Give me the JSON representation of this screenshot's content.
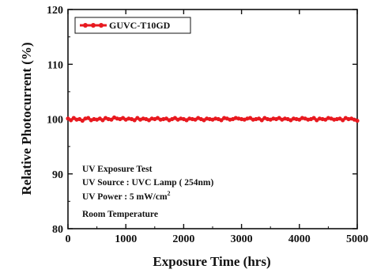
{
  "chart_data": {
    "type": "line",
    "title": "",
    "xlabel": "Exposure Time (hrs)",
    "ylabel": "Relative Photocurrent (%)",
    "xlim": [
      0,
      5000
    ],
    "ylim": [
      80,
      120
    ],
    "x_ticks": [
      0,
      1000,
      2000,
      3000,
      4000,
      5000
    ],
    "y_ticks": [
      80,
      90,
      100,
      110,
      120
    ],
    "x_tick_labels": [
      "0",
      "1000",
      "2000",
      "3000",
      "4000",
      "5000"
    ],
    "y_tick_labels": [
      "80",
      "90",
      "100",
      "110",
      "120"
    ],
    "grid": false,
    "legend_position": "top-left",
    "series": [
      {
        "name": "GUVC-T10GD",
        "color": "#e8191f",
        "marker": "circle",
        "x": [
          0,
          50,
          100,
          150,
          200,
          250,
          300,
          350,
          400,
          450,
          500,
          550,
          600,
          650,
          700,
          750,
          800,
          850,
          900,
          950,
          1000,
          1050,
          1100,
          1150,
          1200,
          1250,
          1300,
          1350,
          1400,
          1450,
          1500,
          1550,
          1600,
          1650,
          1700,
          1750,
          1800,
          1850,
          1900,
          1950,
          2000,
          2050,
          2100,
          2150,
          2200,
          2250,
          2300,
          2350,
          2400,
          2450,
          2500,
          2550,
          2600,
          2650,
          2700,
          2750,
          2800,
          2850,
          2900,
          2950,
          3000,
          3050,
          3100,
          3150,
          3200,
          3250,
          3300,
          3350,
          3400,
          3450,
          3500,
          3550,
          3600,
          3650,
          3700,
          3750,
          3800,
          3850,
          3900,
          3950,
          4000,
          4050,
          4100,
          4150,
          4200,
          4250,
          4300,
          4350,
          4400,
          4450,
          4500,
          4550,
          4600,
          4650,
          4700,
          4750,
          4800,
          4850,
          4900,
          4950,
          5000
        ],
        "y": [
          100.1,
          99.8,
          100.2,
          99.9,
          100.0,
          99.7,
          100.1,
          100.2,
          99.8,
          100.0,
          99.9,
          100.1,
          99.8,
          100.2,
          100.0,
          99.9,
          100.3,
          100.1,
          100.0,
          100.2,
          99.9,
          100.1,
          100.0,
          99.8,
          100.2,
          99.9,
          100.1,
          100.0,
          99.8,
          100.1,
          100.0,
          100.2,
          99.9,
          100.0,
          100.1,
          99.8,
          100.0,
          100.2,
          99.9,
          100.1,
          100.0,
          99.8,
          100.1,
          100.0,
          99.9,
          100.2,
          100.0,
          99.8,
          100.1,
          100.0,
          99.9,
          100.1,
          100.0,
          99.8,
          100.2,
          100.1,
          99.9,
          100.0,
          100.2,
          100.1,
          100.0,
          99.9,
          100.1,
          100.2,
          99.9,
          100.0,
          100.1,
          99.8,
          100.2,
          100.0,
          99.9,
          100.1,
          100.0,
          100.2,
          99.9,
          100.1,
          100.0,
          99.8,
          100.1,
          100.0,
          99.9,
          100.2,
          100.1,
          99.9,
          100.0,
          100.2,
          99.8,
          100.1,
          100.0,
          99.9,
          100.2,
          100.1,
          99.9,
          100.0,
          100.1,
          99.8,
          100.2,
          100.0,
          100.1,
          99.9,
          99.7
        ]
      }
    ],
    "annotations": [
      "UV Exposure Test",
      "UV Source : UVC Lamp ( 254nm)",
      "UV Power : 5 mW/cm",
      "Room Temperature"
    ],
    "annotation_superscript": "2"
  }
}
